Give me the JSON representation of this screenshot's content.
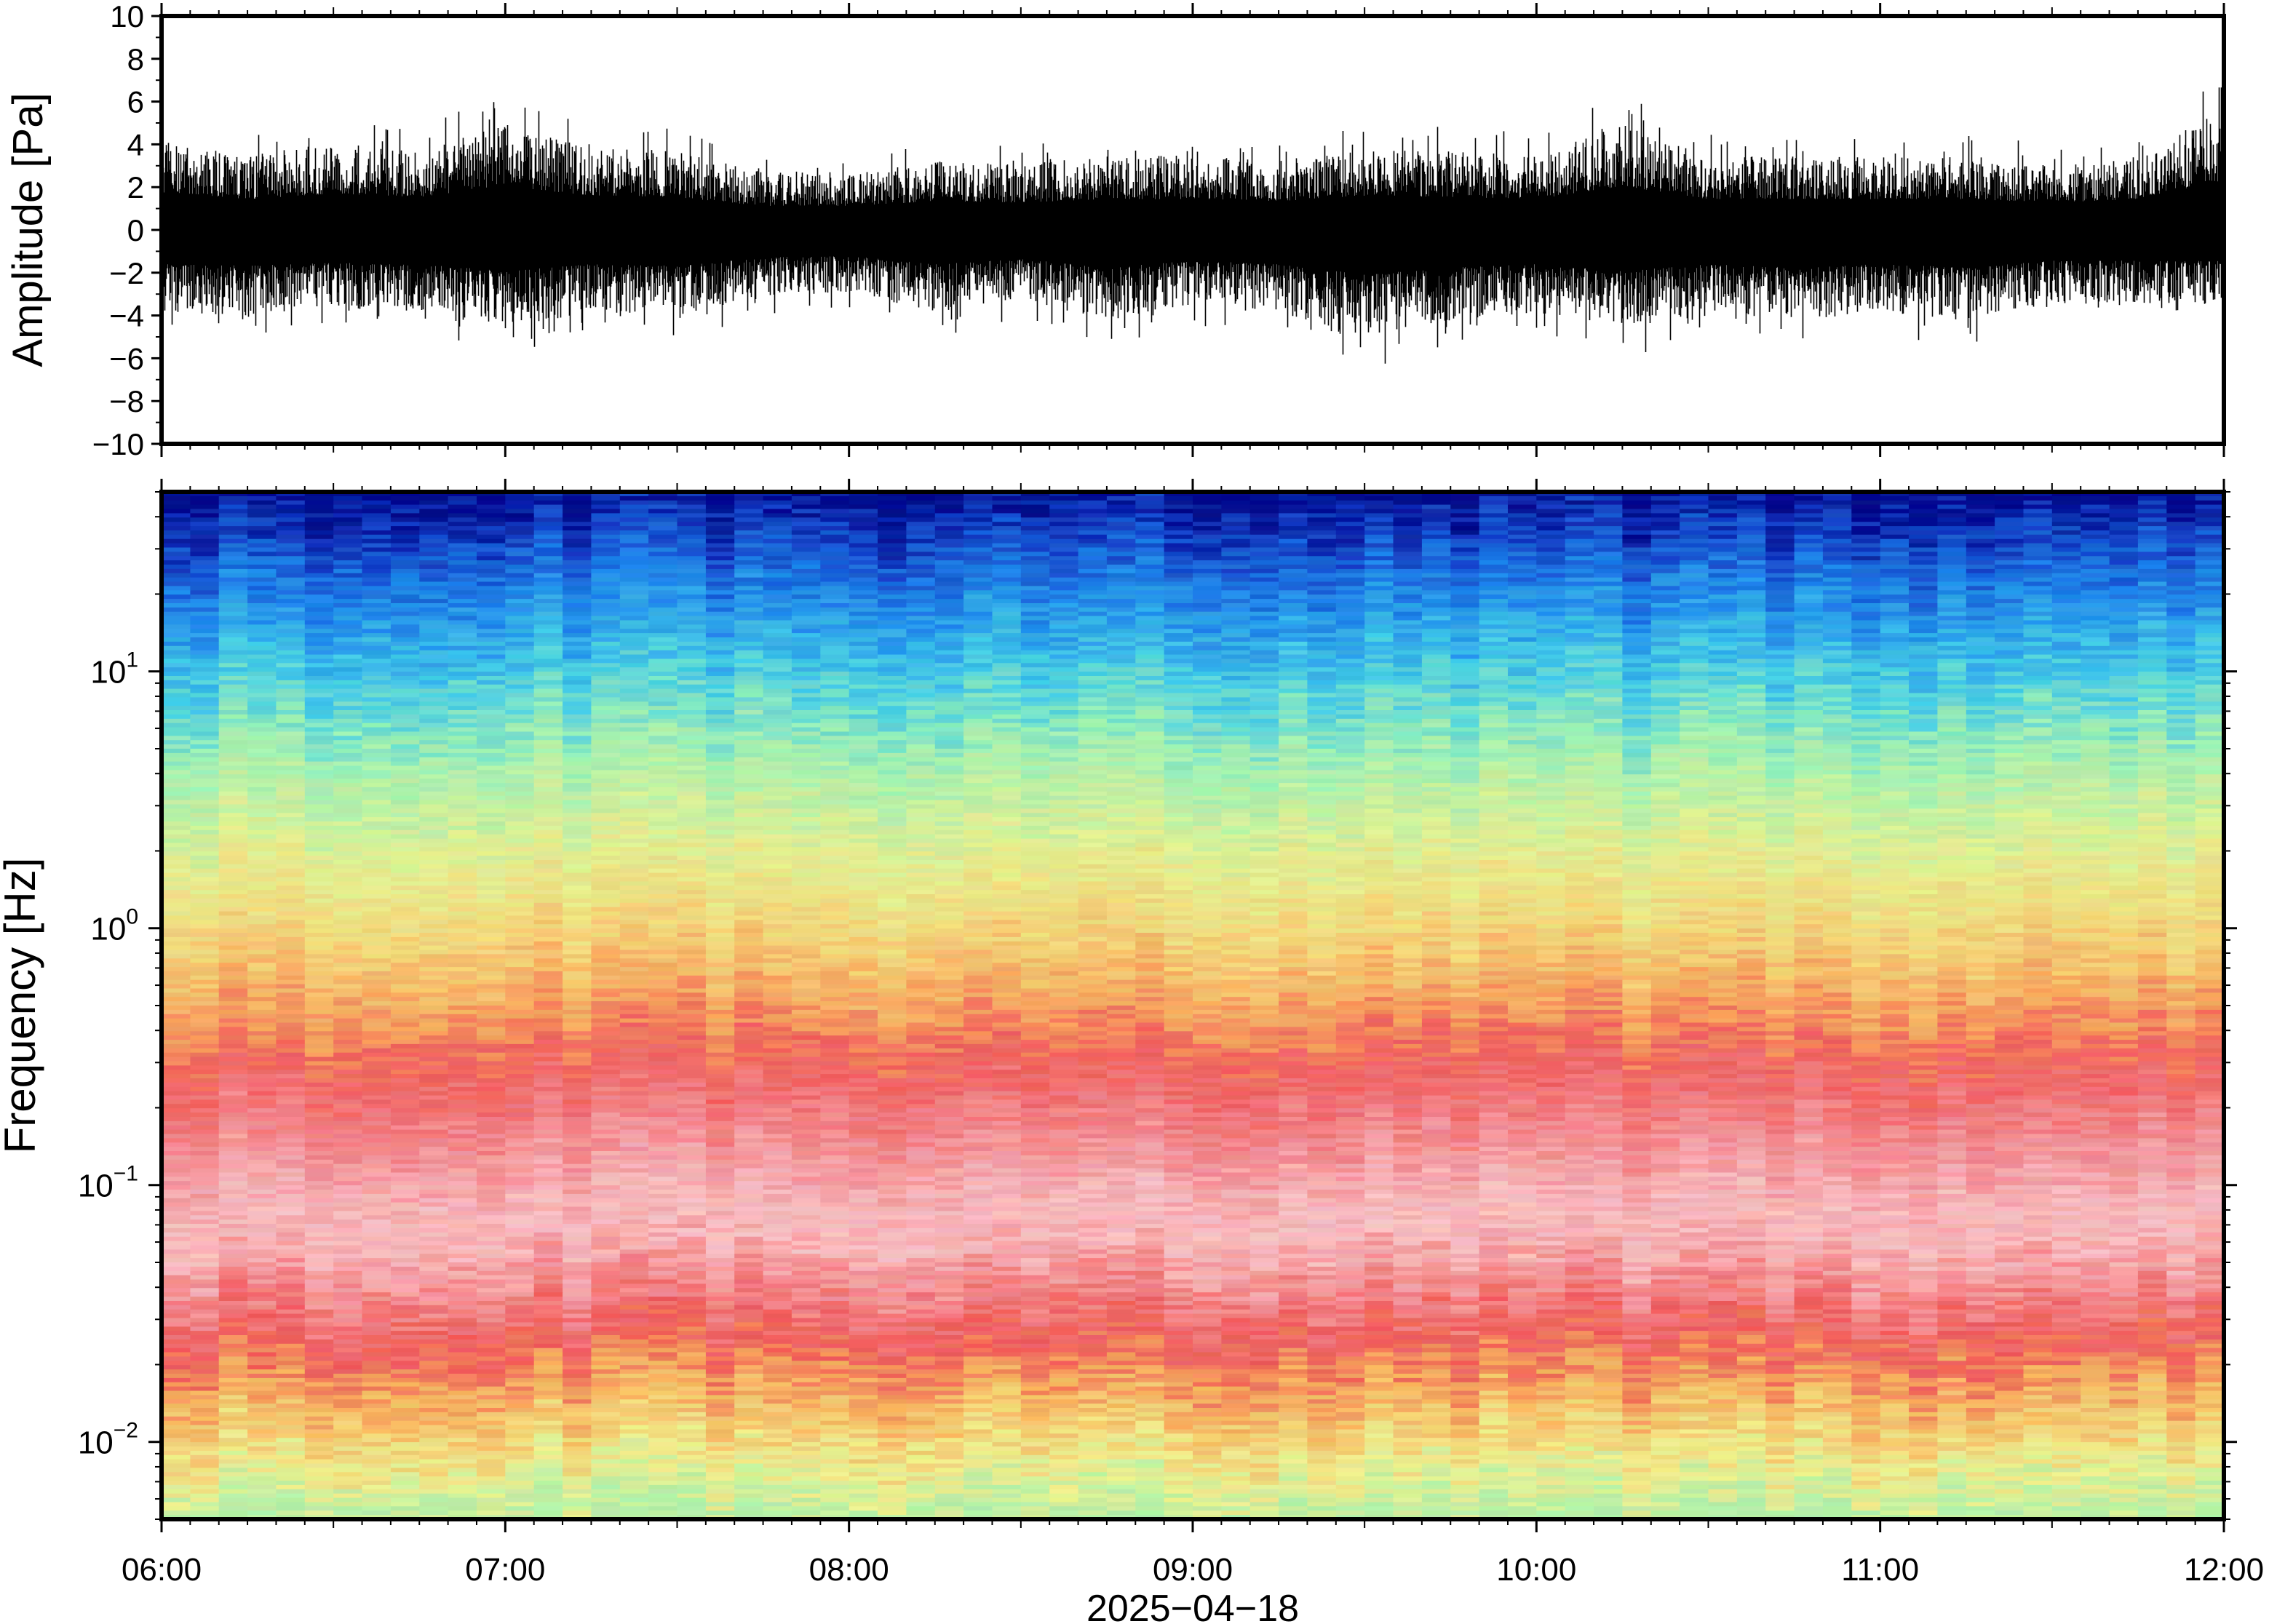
{
  "chart_data": [
    {
      "type": "line",
      "panel": "waveform",
      "ylabel": "Amplitude [Pa]",
      "ylim": [
        -10,
        10
      ],
      "yticks": [
        -10,
        -8,
        -6,
        -4,
        -2,
        0,
        2,
        4,
        6,
        8,
        10
      ],
      "ytick_labels": [
        "−10",
        "−8",
        "−6",
        "−4",
        "−2",
        "0",
        "2",
        "4",
        "6",
        "8",
        "10"
      ],
      "grid": false,
      "line_color": "#000000",
      "series": [
        {
          "x": [
            "06:00",
            "06:15",
            "06:30",
            "06:45",
            "07:00",
            "07:15",
            "07:30",
            "07:45",
            "08:00",
            "08:15",
            "08:30",
            "08:45",
            "09:00",
            "09:15",
            "09:30",
            "09:45",
            "10:00",
            "10:15",
            "10:30",
            "10:45",
            "11:00",
            "11:15",
            "11:30",
            "11:45",
            "12:00"
          ],
          "envelope_max": [
            5.5,
            4.5,
            5.3,
            4.8,
            6.4,
            5.0,
            4.8,
            3.5,
            3.5,
            4.2,
            4.0,
            4.5,
            4.5,
            4.2,
            5.0,
            4.8,
            4.5,
            6.4,
            4.5,
            4.5,
            4.5,
            4.5,
            4.0,
            4.5,
            7.3
          ],
          "envelope_min": [
            -5.0,
            -5.2,
            -4.8,
            -5.0,
            -6.0,
            -5.0,
            -5.2,
            -4.0,
            -3.8,
            -5.0,
            -4.2,
            -5.5,
            -4.5,
            -5.0,
            -6.5,
            -5.5,
            -5.0,
            -6.0,
            -5.0,
            -5.5,
            -5.0,
            -5.5,
            -4.5,
            -4.5,
            -4.5
          ]
        }
      ]
    },
    {
      "type": "heatmap",
      "panel": "spectrogram",
      "ylabel": "Frequency [Hz]",
      "xlabel": "2025−04−18",
      "y_scale": "log",
      "ylim": [
        0.005,
        50
      ],
      "yticks": [
        0.01,
        0.1,
        1,
        10
      ],
      "ytick_labels": [
        {
          "base": "10",
          "exp": "−2"
        },
        {
          "base": "10",
          "exp": "−1"
        },
        {
          "base": "10",
          "exp": "0"
        },
        {
          "base": "10",
          "exp": "1"
        }
      ],
      "xlim": [
        "06:00",
        "12:00"
      ],
      "xtick_labels": [
        "06:00",
        "07:00",
        "08:00",
        "09:00",
        "10:00",
        "11:00",
        "12:00"
      ],
      "colormap": [
        "#000a8c",
        "#0a3fd0",
        "#1f86ea",
        "#3cc4ee",
        "#7fe8c8",
        "#c6f0a0",
        "#eff08e",
        "#f5d77a",
        "#f6a95a",
        "#f07a5c",
        "#ee5a5a",
        "#f69aa0",
        "#f7c7c9"
      ],
      "frequency_profile": [
        {
          "frequency_hz": 50,
          "color": "#000a8c"
        },
        {
          "frequency_hz": 35,
          "color": "#1440c4"
        },
        {
          "frequency_hz": 20,
          "color": "#1f86ea"
        },
        {
          "frequency_hz": 10,
          "color": "#45cce6"
        },
        {
          "frequency_hz": 5,
          "color": "#9ff0b4"
        },
        {
          "frequency_hz": 2,
          "color": "#e2ef92"
        },
        {
          "frequency_hz": 1,
          "color": "#f2d97c"
        },
        {
          "frequency_hz": 0.5,
          "color": "#f6a35e"
        },
        {
          "frequency_hz": 0.3,
          "color": "#ef5f5e"
        },
        {
          "frequency_hz": 0.15,
          "color": "#f28c92"
        },
        {
          "frequency_hz": 0.07,
          "color": "#f7c3c6"
        },
        {
          "frequency_hz": 0.04,
          "color": "#f38a8e"
        },
        {
          "frequency_hz": 0.025,
          "color": "#ee5a5a"
        },
        {
          "frequency_hz": 0.015,
          "color": "#f6b460"
        },
        {
          "frequency_hz": 0.008,
          "color": "#eeee8e"
        },
        {
          "frequency_hz": 0.005,
          "color": "#b4f0a8"
        }
      ]
    }
  ]
}
